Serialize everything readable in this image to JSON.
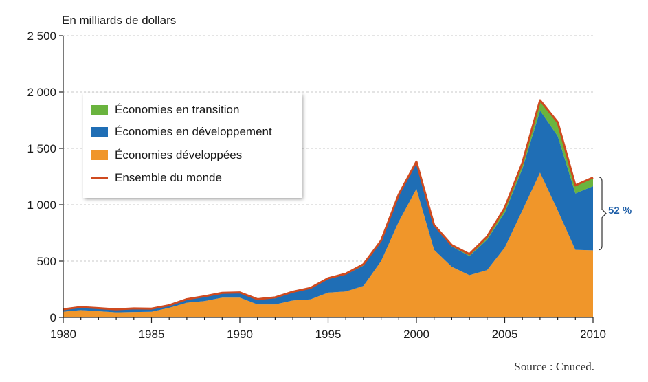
{
  "chart_data": {
    "type": "area",
    "stacked": true,
    "unit_label": "En milliards de dollars",
    "source": "Source : Cnuced.",
    "x": [
      1980,
      1981,
      1982,
      1983,
      1984,
      1985,
      1986,
      1987,
      1988,
      1989,
      1990,
      1991,
      1992,
      1993,
      1994,
      1995,
      1996,
      1997,
      1998,
      1999,
      2000,
      2001,
      2002,
      2003,
      2004,
      2005,
      2006,
      2007,
      2008,
      2009,
      2010
    ],
    "xticks": [
      1980,
      1985,
      1990,
      1995,
      2000,
      2005,
      2010
    ],
    "ylim": [
      0,
      2500
    ],
    "yticks": [
      {
        "value": 0,
        "label": "0"
      },
      {
        "value": 500,
        "label": "500"
      },
      {
        "value": 1000,
        "label": "1 000"
      },
      {
        "value": 1500,
        "label": "1 500"
      },
      {
        "value": 2000,
        "label": "2 000"
      },
      {
        "value": 2500,
        "label": "2 500"
      }
    ],
    "series": [
      {
        "name": "Économies développées",
        "color": "#f0962a",
        "values": [
          50,
          65,
          55,
          45,
          48,
          50,
          85,
          130,
          145,
          175,
          175,
          115,
          115,
          150,
          160,
          220,
          230,
          280,
          500,
          850,
          1140,
          600,
          450,
          375,
          420,
          620,
          950,
          1285,
          950,
          600,
          595
        ]
      },
      {
        "name": "Économies en développement",
        "color": "#1f6eb5",
        "values": [
          20,
          25,
          25,
          25,
          30,
          25,
          20,
          30,
          40,
          40,
          45,
          45,
          55,
          70,
          95,
          120,
          150,
          180,
          170,
          230,
          235,
          210,
          180,
          170,
          270,
          310,
          370,
          550,
          660,
          500,
          570
        ]
      },
      {
        "name": "Économies en transition",
        "color": "#6ab43e",
        "values": [
          0,
          0,
          0,
          0,
          0,
          0,
          0,
          0,
          0,
          0,
          0,
          0,
          5,
          5,
          5,
          5,
          6,
          10,
          10,
          10,
          5,
          8,
          10,
          15,
          25,
          40,
          50,
          90,
          120,
          70,
          75
        ]
      }
    ],
    "total_line": {
      "name": "Ensemble du monde",
      "color": "#cf4a1f",
      "values": [
        72,
        92,
        82,
        72,
        80,
        78,
        108,
        162,
        188,
        218,
        222,
        162,
        178,
        228,
        262,
        348,
        388,
        472,
        682,
        1092,
        1382,
        820,
        642,
        562,
        717,
        972,
        1372,
        1927,
        1732,
        1172,
        1242
      ]
    },
    "annotation": {
      "text": "52 %",
      "x": 2010,
      "from": 600,
      "to": 1245
    }
  },
  "legend": {
    "items": [
      {
        "label": "Économies en transition",
        "color": "#6ab43e",
        "kind": "area"
      },
      {
        "label": "Économies en développement",
        "color": "#1f6eb5",
        "kind": "area"
      },
      {
        "label": "Économies développées",
        "color": "#f0962a",
        "kind": "area"
      },
      {
        "label": "Ensemble du monde",
        "color": "#cf4a1f",
        "kind": "line"
      }
    ]
  }
}
